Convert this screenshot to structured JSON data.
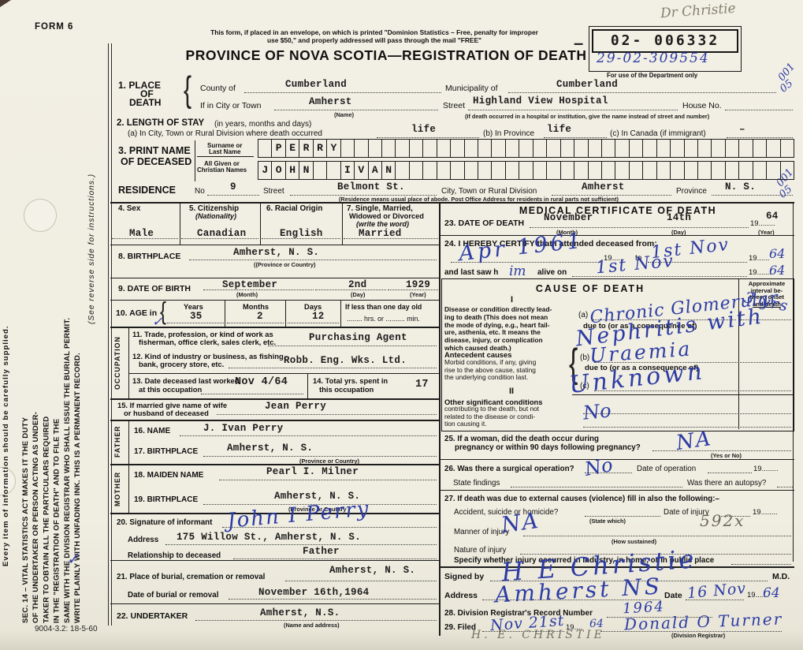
{
  "colors": {
    "ink_blue": "#2d3ca4",
    "pencil": "#87816f",
    "paper": "#f2efe4"
  },
  "header": {
    "form_no": "FORM 6",
    "note_line1": "This form, if placed in an envelope, on which is printed \"Dominion Statistics – Free, penalty for improper",
    "note_line2": "use $50,\" and properly addressed will pass through the mail \"FREE\"",
    "title": "PROVINCE OF NOVA SCOTIA—REGISTRATION OF DEATH",
    "pencil_doctor": "Dr Christie",
    "stamp_dash": "–",
    "stamp_number": "02- 006332",
    "stamp_handwritten": "29-02-309554",
    "dept_note": "For use of the Department only",
    "margin_mark_top_a": "001",
    "margin_mark_top_b": "05",
    "margin_mark_res_a": "001",
    "margin_mark_res_b": "05"
  },
  "margin": {
    "every_item": "Every item of information should be carefully supplied.",
    "sec14": [
      "SEC. 14 – VITAL STATISTICS ACT MAKES IT THE DUTY",
      "OF THE UNDERTAKER OR PERSON ACTING AS UNDER-",
      "TAKER TO OBTAIN ALL THE PARTICULARS REQUIRED",
      "IN THE \"REGISTRATION OF DEATH\" AND TO FILE THE",
      "SAME WITH THE DIVISION REGISTRAR WHO SHALL ISSUE THE BURIAL PERMIT.",
      "WRITE PLAINLY WITH UNFADING INK. THIS IS A PERMANENT RECORD."
    ],
    "see_reverse": "(See reverse side for instructions.)",
    "checkmark": "✓",
    "print_code": "9004-3.2: 18-5-60"
  },
  "s1": {
    "label1": "1. PLACE",
    "label2": "OF",
    "label3": "DEATH",
    "brace": "{",
    "county_label": "County of",
    "county_value": "Cumberland",
    "municipality_label": "Municipality of",
    "municipality_value": "Cumberland",
    "city_label": "If in City or Town",
    "city_value": "Amherst",
    "city_sub": "(Name)",
    "street_label": "Street",
    "street_value": "Highland View Hospital",
    "house_label": "House No.",
    "street_sub": "(If death occurred in a hospital or institution, give the name instead of street and number)"
  },
  "s2": {
    "label": "2. LENGTH OF STAY",
    "label_paren": "(in years, months and days)",
    "a_label": "(a) In City, Town or Rural Division where death occurred",
    "a_value": "life",
    "b_label": "(b) In Province",
    "b_value": "life",
    "c_label": "(c) In Canada (if immigrant)",
    "c_value": "–"
  },
  "s3": {
    "label1": "3. PRINT NAME",
    "label2": "OF DECEASED",
    "surname_label1": "Surname or",
    "surname_label2": "Last Name",
    "given_label1": "All Given or",
    "given_label2": "Christian Names",
    "surname_boxed": " PERRY",
    "given_boxed": "JOHN  IVAN",
    "box_count": 39
  },
  "residence": {
    "label": "RESIDENCE",
    "no_label": "No",
    "no_value": "9",
    "street_label": "Street",
    "street_value": "Belmont St.",
    "city_label": "City, Town or Rural Division",
    "city_value": "Amherst",
    "province_label": "Province",
    "province_value": "N. S.",
    "sub": "(Residence means usual place of abode. Post Office Address for residents in rural parts not sufficient)"
  },
  "s4": {
    "label": "4. Sex",
    "value": "Male"
  },
  "s5": {
    "label": "5. Citizenship",
    "label2": "(Nationality)",
    "value": "Canadian"
  },
  "s6": {
    "label": "6. Racial Origin",
    "value": "English"
  },
  "s7": {
    "label1": "7. Single, Married,",
    "label2": "Widowed or Divorced",
    "label3": "(write the word)",
    "value": "Married"
  },
  "s8": {
    "label": "8. BIRTHPLACE",
    "value": "Amherst, N. S.",
    "sub": "((Province or Country)"
  },
  "s9": {
    "label": "9. DATE OF BIRTH",
    "month_value": "September",
    "month_sub": "(Month)",
    "day_value": "2nd",
    "day_sub": "(Day)",
    "year_value": "1929",
    "year_sub": "(Year)"
  },
  "s10": {
    "label": "10. AGE in",
    "brace": "{",
    "check": "✓",
    "years_label": "Years",
    "years_value": "35",
    "months_label": "Months",
    "months_value": "2",
    "days_label": "Days",
    "days_value": "12",
    "less_label": "If less than one day old",
    "less_sub": "........ hrs. or .......... min."
  },
  "occupation_strip": "OCCUPATION",
  "s11": {
    "label1": "11. Trade, profession, or kind of work as",
    "label2": "fisherman, office clerk, sales clerk, etc.",
    "value": "Purchasing Agent"
  },
  "s12": {
    "label1": "12. Kind of industry or business, as fishing,",
    "label2": "bank, grocery store, etc.",
    "value": "Robb. Eng. Wks. Ltd."
  },
  "s13": {
    "label1": "13. Date deceased last worked",
    "label2": "at this occupation",
    "value": "Nov 4/64"
  },
  "s14": {
    "label1": "14. Total yrs. spent in",
    "label2": "this occupation",
    "value": "17"
  },
  "s15": {
    "label1": "15. If married give name of wife",
    "label2": "or husband of deceased",
    "value": "Jean Perry"
  },
  "father_strip": "FATHER",
  "s16": {
    "label": "16. NAME",
    "value": "J. Ivan Perry"
  },
  "s17": {
    "label": "17. BIRTHPLACE",
    "value": "Amherst, N. S.",
    "sub": "(Province or Country)"
  },
  "mother_strip": "MOTHER",
  "s18": {
    "label": "18. MAIDEN NAME",
    "value": "Pearl I. Milner"
  },
  "s19": {
    "label": "19. BIRTHPLACE",
    "value": "Amherst, N. S.",
    "sub": "(Province or Country"
  },
  "s20": {
    "label": "20. Signature of informant",
    "signature": "John I Perry",
    "address_label": "Address",
    "address_value": "175 Willow St., Amherst, N. S.",
    "rel_label": "Relationship to deceased",
    "rel_value": "Father"
  },
  "s21": {
    "label": "21. Place of burial, cremation or removal",
    "value": "Amherst, N. S.",
    "date_label": "Date of burial or removal",
    "date_value": "November 16th,1964"
  },
  "s22": {
    "label": "22. UNDERTAKER",
    "value": "Amherst, N.S.",
    "sub": "(Name and address)"
  },
  "medical": {
    "title": "MEDICAL CERTIFICATE OF DEATH"
  },
  "s23": {
    "label": "23. DATE OF DEATH",
    "month_value": "November",
    "month_sub": "(Month)",
    "day_value": "14th",
    "day_sub": "(Day)",
    "year_printed": "19........",
    "year_value": "64",
    "year_sub": "(Year)"
  },
  "s24": {
    "label": "24. I HEREBY CERTIFY that I attended deceased from:",
    "from_ink": "Apr 1961",
    "printed_19a": "19......",
    "to_label": "to",
    "to_ink": "1st Nov",
    "printed_19b": "19......",
    "year_a_ink": "64",
    "last_label": "and last saw h",
    "last_ink": "im",
    "alive_label": "alive on",
    "alive_ink": "1st Nov",
    "printed_19c": "19.......",
    "year_b_ink": "64"
  },
  "cause": {
    "title": "CAUSE OF DEATH",
    "interval_lines": [
      "Approximate",
      "interval be-",
      "tween onset",
      "and death"
    ],
    "roman1": "I",
    "disease_lines": [
      "Disease or condition directly lead-",
      "ing to death (This does not mean",
      "the mode of dying, e.g., heart fail-",
      "ure, asthenia, etc. It means the",
      "disease, injury, or complication",
      "which caused death.)"
    ],
    "a_label": "(a)",
    "due_a": "due to (or as a consequence of)",
    "b_label": "(b)",
    "due_b": "due to (or as a consequence of)",
    "c_label": "(c)",
    "brace": "{",
    "antecedent_title": "Antecedent causes",
    "antecedent_lines": [
      "Morbid conditions, if any, giving",
      "rise to the above cause, stating",
      "the underlying condition last."
    ],
    "roman2": "II",
    "other_title": "Other significant conditions",
    "other_lines": [
      "contributing to the death, but not",
      "related to the disease or condi-",
      "tion causing it."
    ],
    "ink_a": "Chronic Glomerular",
    "ink_due": "Nephritis with",
    "ink_b": "Uraemia",
    "ink_interval": "3 yrs",
    "ink_c": "Unknown",
    "ink_other": "No"
  },
  "s25": {
    "label1": "25. If a woman, did the death occur during",
    "label2": "pregnancy or within 90 days following pregnancy?",
    "sub": "(Yes or No)",
    "ink": "NA"
  },
  "s26": {
    "label": "26. Was there a surgical operation?",
    "ink": "No",
    "date_label": "Date of operation",
    "printed_19": "19........",
    "findings_label": "State findings",
    "autopsy_label": "Was there an autopsy?"
  },
  "s27": {
    "label": "27. If death was due to external causes (violence) fill in also the following:–",
    "accident_label": "Accident, suicide or homicide?",
    "state_which": "(State which)",
    "date_injury_label": "Date of injury",
    "printed_19": "19........",
    "manner_label": "Manner of injury",
    "ink_na": "NA",
    "how_sub": "(How sustained)",
    "pencil_code": "592x",
    "nature_label": "Nature of injury",
    "specify_label": "Specify whether injury occurred in Industry, in home, or in public place"
  },
  "signed": {
    "label": "Signed by",
    "md": "M.D.",
    "ink_sig": "H E Christie",
    "address_label": "Address",
    "ink_address": "Amherst NS",
    "date_label": "Date",
    "ink_date": "16 Nov",
    "printed_19": "19......",
    "ink_year": "64"
  },
  "s28": {
    "label": "28. Division Registrar's Record Number",
    "ink": "1964"
  },
  "s29": {
    "label": "29. Filed",
    "ink_date": "Nov 21st",
    "printed_19": "19....",
    "ink_year": "64",
    "ink_registrar": "Donald O Turner",
    "sub": "(Division Registrar)",
    "pencil_name": "H. E. CHRISTIE"
  }
}
